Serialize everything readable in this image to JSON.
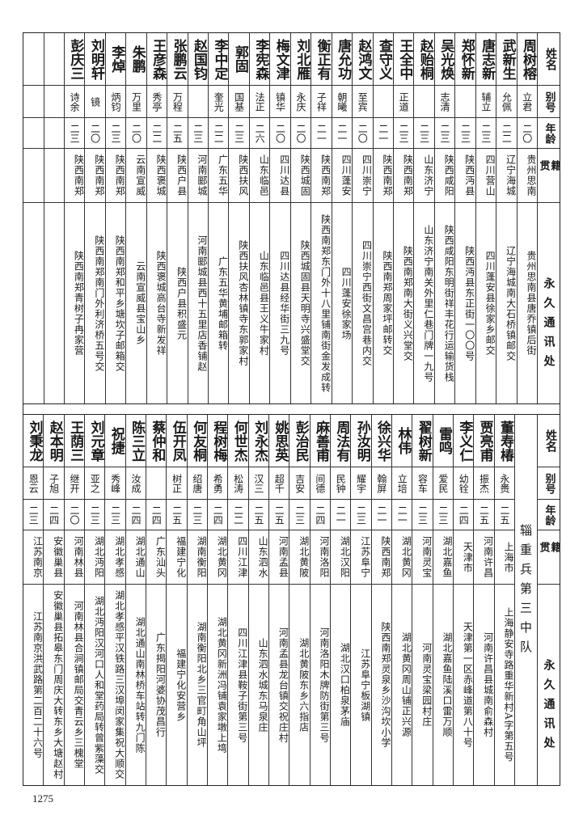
{
  "headers": {
    "name": "姓名",
    "alias": "别号",
    "age": "年龄",
    "origin": "籍贯",
    "address": "永久通讯处"
  },
  "top": {
    "rows": [
      {
        "name": "周树榕",
        "alias": "立君",
        "age": "二〇",
        "origin": "贵州思南",
        "address": "贵州思南县唐乔镇后街"
      },
      {
        "name": "武新生",
        "alias": "允佩",
        "age": "二二",
        "origin": "辽宁海城",
        "address": "辽宁海城南大石桥镇邮交"
      },
      {
        "name": "唐志新",
        "alias": "辅立",
        "age": "二三",
        "origin": "四川营山",
        "address": "四川蓬安县徐家乡邮交"
      },
      {
        "name": "郑怀新",
        "alias": "",
        "age": "二三",
        "origin": "陕西沔县",
        "address": "陕西沔县东正街一〇〇号"
      },
      {
        "name": "吴光焕",
        "alias": "志清",
        "age": "二三",
        "origin": "陕西咸阳",
        "address": "陕西咸阳东明街祥丰花行运输货栈"
      },
      {
        "name": "赵贻桐",
        "alias": "",
        "age": "二三",
        "origin": "山东济宁",
        "address": "山东济宁南关外里仁巷门牌一九号"
      },
      {
        "name": "王全中",
        "alias": "正道",
        "age": "二三",
        "origin": "陕西南郑",
        "address": "陕西南郑南大街义兴堂交"
      },
      {
        "name": "查守义",
        "alias": "",
        "age": "二一",
        "origin": "陕西南郑",
        "address": "陕西南郑周家坪邮转交"
      },
      {
        "name": "赵鸿文",
        "alias": "至宾",
        "age": "二〇",
        "origin": "四川崇宁",
        "address": "四川崇宁西街文昌宫巷内交"
      },
      {
        "name": "唐允功",
        "alias": "朝曦",
        "age": "二一",
        "origin": "四川蓬安",
        "address": "四川蓬安徐家场"
      },
      {
        "name": "衡正有",
        "alias": "子祥",
        "age": "二一",
        "origin": "陕西南郑",
        "address": "陕西南郑东门外十八里铺南街金发成转"
      },
      {
        "name": "刘北雁",
        "alias": "永庆",
        "age": "二〇",
        "origin": "陕西城固",
        "address": "陕西城固县天明寺兴盛堂交"
      },
      {
        "name": "梅文津",
        "alias": "镇华",
        "age": "二〇",
        "origin": "四川达县",
        "address": "四川达县经华街三九号"
      },
      {
        "name": "李宪森",
        "alias": "法正",
        "age": "二六",
        "origin": "山东临邑",
        "address": "山东临邑县王义牛家村"
      },
      {
        "name": "郭固",
        "alias": "国基",
        "age": "二三",
        "origin": "陕西扶风",
        "address": "陕西扶风杏林镇寺东郭家村"
      },
      {
        "name": "李中定",
        "alias": "奎光",
        "age": "二二",
        "origin": "广东五华",
        "address": "广东五华黄埔邮箱转"
      },
      {
        "name": "赵国钧",
        "alias": "",
        "age": "二三",
        "origin": "河南郾城",
        "address": "河南郾城县西十五里店香铺赵"
      },
      {
        "name": "张鹏云",
        "alias": "万程",
        "age": "二五",
        "origin": "陕西户县",
        "address": "陕西户县积盛元"
      },
      {
        "name": "王彦森",
        "alias": "秀亭",
        "age": "二二",
        "origin": "陕西褒城",
        "address": "陕西褒城高台寺新发祥"
      },
      {
        "name": "朱鹏",
        "alias": "万里",
        "age": "二〇",
        "origin": "云南宣威",
        "address": "云南宣威县宝山乡"
      },
      {
        "name": "李焯",
        "alias": "炳钧",
        "age": "二三",
        "origin": "陕西南郑",
        "address": "陕西南郑和平乡塘坎子邮箱交"
      },
      {
        "name": "刘明轩",
        "alias": "镜",
        "age": "二〇",
        "origin": "陕西南郑",
        "address": "陕西南郑南门外利济桥五号交"
      },
      {
        "name": "彭庆三",
        "alias": "诗余",
        "age": "二三",
        "origin": "陕西南郑",
        "address": "陕西南郑青树子冉家营"
      }
    ]
  },
  "bottom": {
    "unit_label": "辎重兵第三中队",
    "rows": [
      {
        "name": "董寿椿",
        "alias": "永赉",
        "age": "二五",
        "origin": "上海市",
        "address": "上海静安寺路重华新村A字第五号"
      },
      {
        "name": "贾亮甫",
        "alias": "振杰",
        "age": "二五",
        "origin": "河南许昌",
        "address": "河南许昌县城南俞森村"
      },
      {
        "name": "李义仁",
        "alias": "幼铨",
        "age": "二四",
        "origin": "天津市",
        "address": "天津第一区赤峰道第八十号"
      },
      {
        "name": "雷鸣",
        "alias": "爱民",
        "age": "二三",
        "origin": "湖北嘉鱼",
        "address": "湖北嘉鱼陆溪口雷万顺"
      },
      {
        "name": "翟树新",
        "alias": "容车",
        "age": "二三",
        "origin": "河南灵宝",
        "address": "河南灵宝梁园村庄"
      },
      {
        "name": "林伟",
        "alias": "立培",
        "age": "二一",
        "origin": "湖北黄冈",
        "address": "湖北黄冈周山铺正兴源"
      },
      {
        "name": "徐兴华",
        "alias": "翰屏",
        "age": "二一",
        "origin": "陕西南郑",
        "address": "陕西南郑灵泉乡沙沟坎小学"
      },
      {
        "name": "孙汝明",
        "alias": "耀宇",
        "age": "二三",
        "origin": "江苏阜宁",
        "address": "江苏阜宁板湖镇"
      },
      {
        "name": "周法有",
        "alias": "民钟",
        "age": "二一",
        "origin": "湖北汉阳",
        "address": "湖北汉口柏泉茅庙"
      },
      {
        "name": "麻善甫",
        "alias": "间德",
        "age": "二四",
        "origin": "河南洛阳",
        "address": "河南洛阳木牌防街第三号"
      },
      {
        "name": "彭治民",
        "alias": "吉安",
        "age": "二三",
        "origin": "湖北黄陂",
        "address": "湖北黄陂东乡六指店"
      },
      {
        "name": "姚思英",
        "alias": "超千",
        "age": "二五",
        "origin": "河南孟县",
        "address": "河南孟县龙台镇交祝庄村"
      },
      {
        "name": "刘永杰",
        "alias": "汉三",
        "age": "二五",
        "origin": "山东泗水",
        "address": "山东泗水城东马泉庄"
      },
      {
        "name": "何世杰",
        "alias": "松涛",
        "age": "二二",
        "origin": "四川江津",
        "address": "四川江津县鞍子街第三号"
      },
      {
        "name": "程树梅",
        "alias": "希勇",
        "age": "二四",
        "origin": "湖北黄冈",
        "address": "湖北黄冈新洲冯铺袁家墩上塆"
      },
      {
        "name": "何友桐",
        "alias": "绍唐",
        "age": "二三",
        "origin": "湖南衡阳",
        "address": "湖南衡阳北乡三官町角山坪"
      },
      {
        "name": "伍开凤",
        "alias": "树正",
        "age": "二五",
        "origin": "福建宁化",
        "address": "福建宁化安营乡"
      },
      {
        "name": "蔡仲和",
        "alias": "",
        "age": "二四",
        "origin": "广东汕头",
        "address": "广东揭阳河婆协茂昌行"
      },
      {
        "name": "陈三立",
        "alias": "汝成",
        "age": "二四",
        "origin": "湖北通山",
        "address": "湖北通山南林桥车站转九门陈"
      },
      {
        "name": "祝捷",
        "alias": "秀峰",
        "age": "二三",
        "origin": "湖北孝感",
        "address": "湖北孝感平汉铁路三汉埠闵家集祝大顺交"
      },
      {
        "name": "刘元章",
        "alias": "亚之",
        "age": "二三",
        "origin": "湖北沔阳",
        "address": "湖北沔阳汉河口人和堂药局转曾紫藻交"
      },
      {
        "name": "王荫三",
        "alias": "继开",
        "age": "二〇",
        "origin": "河南林县",
        "address": "河南林县合涧镇邮局交青云乡三槐堂"
      },
      {
        "name": "赵本明",
        "alias": "子旭",
        "age": "二四",
        "origin": "安徽巢县",
        "address": "安徽巢县拓皋东门周庆大转东乡大塘赵村"
      },
      {
        "name": "刘秉龙",
        "alias": "恩云",
        "age": "二三",
        "origin": "江苏南京",
        "address": "江苏南京洪武路第二百二十六号"
      }
    ]
  },
  "page_number": "1275"
}
